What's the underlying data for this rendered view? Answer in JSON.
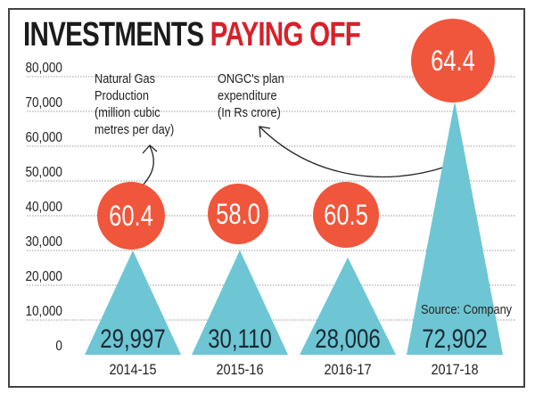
{
  "title": {
    "part1": "INVESTMENTS",
    "part2": "PAYING OFF"
  },
  "annotations": {
    "gas": [
      "Natural Gas",
      "Production",
      "(million cubic",
      "metres per day)"
    ],
    "expenditure": [
      "ONGC's plan",
      "expenditure",
      "(In Rs crore)"
    ]
  },
  "source": "Source: Company",
  "chart_data": {
    "type": "bar",
    "mark": "triangle",
    "categories": [
      "2014-15",
      "2015-16",
      "2016-17",
      "2017-18"
    ],
    "ylim": [
      0,
      80000
    ],
    "yticks": [
      0,
      10000,
      20000,
      30000,
      40000,
      50000,
      60000,
      70000,
      80000
    ],
    "ytick_labels": [
      "0",
      "10,000",
      "20,000",
      "30,000",
      "40,000",
      "50,000",
      "60,000",
      "70,000",
      "80,000"
    ],
    "grid": true,
    "series": [
      {
        "name": "ONGC's plan expenditure (In Rs crore)",
        "values": [
          29997,
          30110,
          28006,
          72902
        ],
        "labels": [
          "29,997",
          "30,110",
          "28,006",
          "72,902"
        ]
      },
      {
        "name": "Natural Gas Production (million cubic metres per day)",
        "values": [
          60.4,
          58.0,
          60.5,
          64.4
        ],
        "labels": [
          "60.4",
          "58.0",
          "60.5",
          "64.4"
        ]
      }
    ]
  },
  "colors": {
    "triangle": "#6ec6d4",
    "circle": "#f0563b",
    "title_red": "#d8202a",
    "grid": "#999999"
  }
}
